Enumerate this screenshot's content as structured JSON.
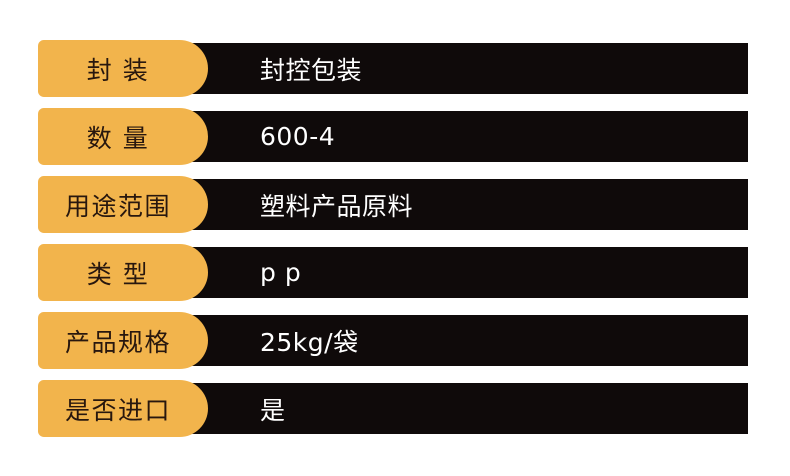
{
  "colors": {
    "background": "#ffffff",
    "badge": "#f2b44c",
    "bar": "#0f0a0a",
    "label_text": "#28170e",
    "value_text": "#ffffff"
  },
  "spec_table": {
    "rows": [
      {
        "label": "封 装",
        "value": "封控包装"
      },
      {
        "label": "数 量",
        "value": "600-4"
      },
      {
        "label": "用途范围",
        "value": "塑料产品原料"
      },
      {
        "label": "类 型",
        "value": "p p"
      },
      {
        "label": "产品规格",
        "value": "25kg/袋"
      },
      {
        "label": "是否进口",
        "value": "是"
      }
    ]
  }
}
